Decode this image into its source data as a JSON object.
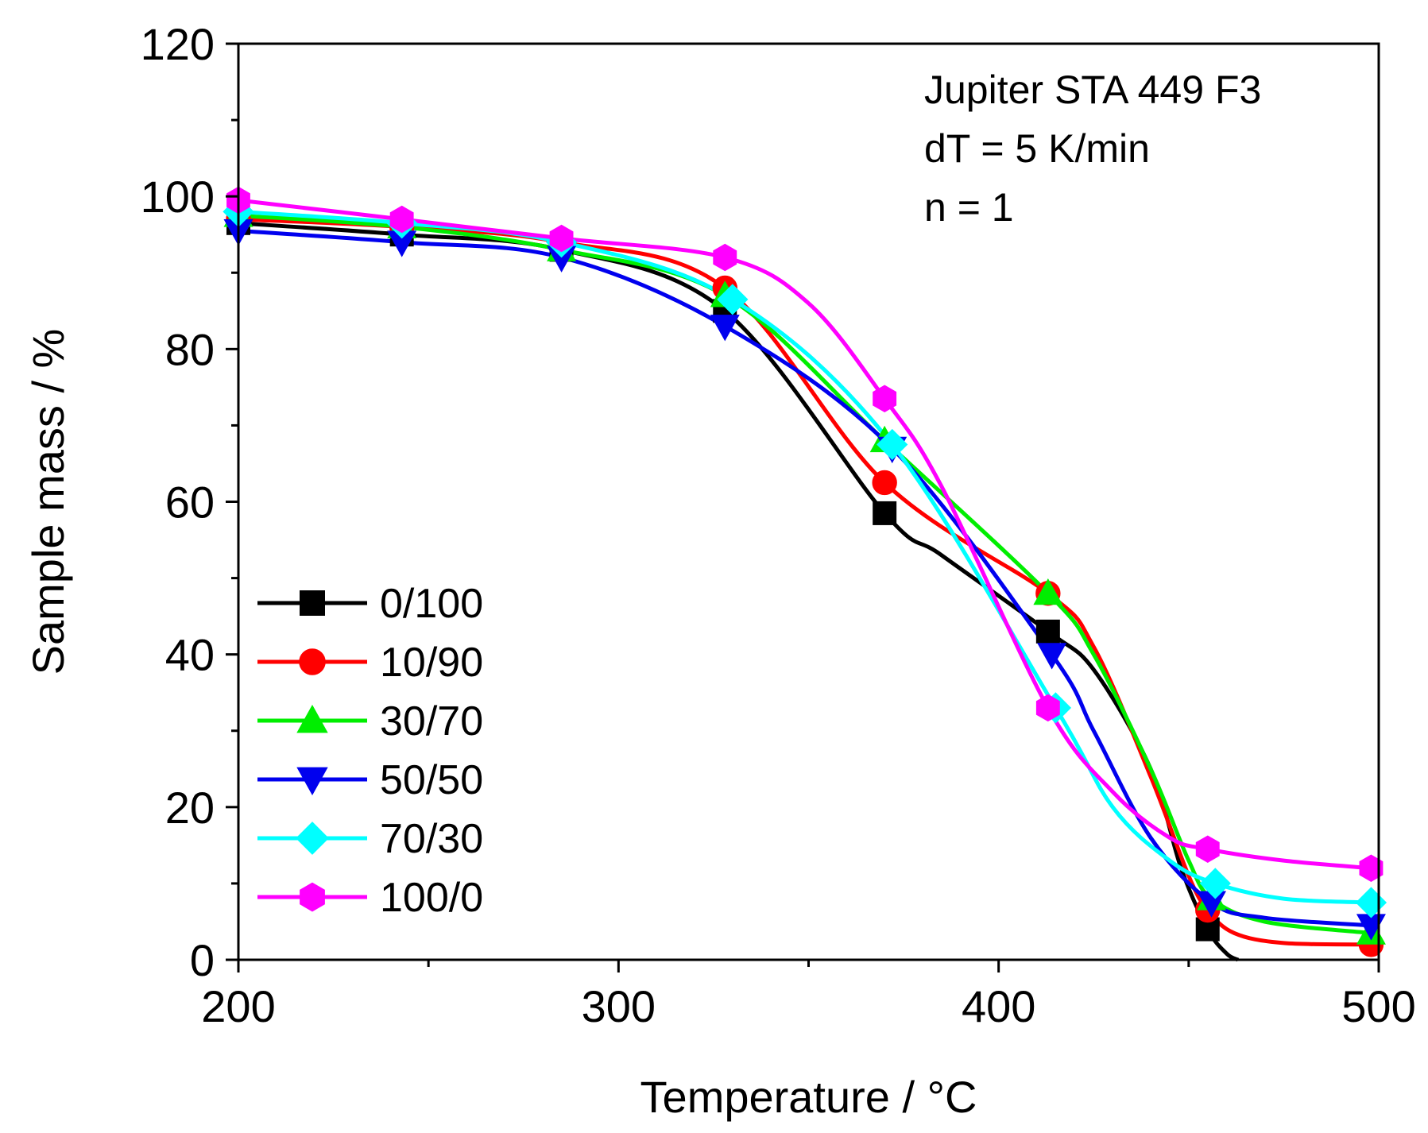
{
  "chart_data": {
    "type": "line",
    "title": "",
    "xlabel": "Temperature / °C",
    "ylabel": "Sample mass / %",
    "xlim": [
      200,
      500
    ],
    "ylim": [
      0,
      120
    ],
    "xticks": [
      200,
      300,
      400,
      500
    ],
    "yticks": [
      0,
      20,
      40,
      60,
      80,
      100,
      120
    ],
    "xtick_labels": [
      "200",
      "300",
      "400",
      "500"
    ],
    "ytick_labels": [
      "0",
      "20",
      "40",
      "60",
      "80",
      "100",
      "120"
    ],
    "grid": false,
    "legend_position": "left-middle",
    "annotations": [
      "Jupiter STA 449 F3",
      "dT = 5 K/min",
      "n = 1"
    ],
    "series": [
      {
        "name": "0/100",
        "color": "#000000",
        "marker": "square",
        "x": [
          200,
          243,
          285,
          328,
          370,
          385,
          413,
          425,
          440,
          448,
          455,
          460,
          463
        ],
        "y": [
          96.5,
          95,
          93,
          85,
          58.5,
          53,
          43,
          38,
          25,
          12,
          4,
          0.8,
          0
        ],
        "marker_x": [
          200,
          243,
          285,
          328,
          370,
          413,
          455
        ],
        "marker_y": [
          96.5,
          95,
          93,
          85,
          58.5,
          43,
          4
        ]
      },
      {
        "name": "10/90",
        "color": "#ff0000",
        "marker": "circle",
        "x": [
          200,
          243,
          285,
          328,
          370,
          413,
          425,
          440,
          450,
          455,
          462,
          475,
          498
        ],
        "y": [
          97,
          96,
          94,
          88,
          62.5,
          48,
          41,
          24,
          11,
          6.5,
          3.5,
          2.2,
          2
        ],
        "marker_x": [
          200,
          243,
          285,
          328,
          370,
          413,
          455,
          498
        ],
        "marker_y": [
          97,
          96,
          94,
          88,
          62.5,
          48,
          6.5,
          2
        ]
      },
      {
        "name": "30/70",
        "color": "#00ee00",
        "marker": "triangle-up",
        "x": [
          200,
          243,
          285,
          328,
          370,
          413,
          425,
          440,
          450,
          456,
          470,
          498
        ],
        "y": [
          97.5,
          96,
          93,
          87,
          68,
          48,
          40,
          25,
          13,
          8,
          5,
          3.5
        ],
        "marker_x": [
          200,
          243,
          285,
          328,
          370,
          413,
          456,
          498
        ],
        "marker_y": [
          97.5,
          96,
          93,
          87,
          68,
          48,
          8,
          3.5
        ]
      },
      {
        "name": "50/50",
        "color": "#0000ee",
        "marker": "triangle-down",
        "x": [
          200,
          243,
          285,
          328,
          372,
          414,
          425,
          440,
          456,
          470,
          498
        ],
        "y": [
          95.5,
          94,
          92,
          83,
          67,
          40,
          30,
          16,
          7.5,
          5.5,
          4.5
        ],
        "marker_x": [
          200,
          243,
          285,
          328,
          372,
          414,
          456,
          498
        ],
        "marker_y": [
          95.5,
          94,
          92,
          83,
          67,
          40,
          7.5,
          4.5
        ]
      },
      {
        "name": "70/30",
        "color": "#00ffff",
        "marker": "diamond",
        "x": [
          200,
          243,
          285,
          330,
          372,
          415,
          430,
          445,
          457,
          475,
          498
        ],
        "y": [
          98,
          96.5,
          94,
          86.5,
          67.5,
          33,
          20,
          13,
          10,
          8,
          7.5
        ],
        "marker_x": [
          200,
          243,
          285,
          330,
          372,
          415,
          457,
          498
        ],
        "marker_y": [
          98,
          96.5,
          94,
          86.5,
          67.5,
          33,
          10,
          7.5
        ]
      },
      {
        "name": "100/0",
        "color": "#ff00ff",
        "marker": "hexagon",
        "x": [
          200,
          243,
          285,
          328,
          350,
          370,
          385,
          413,
          430,
          445,
          455,
          475,
          498
        ],
        "y": [
          99.5,
          97,
          94.5,
          92,
          86,
          73.5,
          62,
          33,
          22,
          16,
          14.5,
          13,
          12
        ],
        "marker_x": [
          200,
          243,
          285,
          328,
          370,
          413,
          455,
          498
        ],
        "marker_y": [
          99.5,
          97,
          94.5,
          92,
          73.5,
          33,
          14.5,
          12
        ]
      }
    ]
  }
}
